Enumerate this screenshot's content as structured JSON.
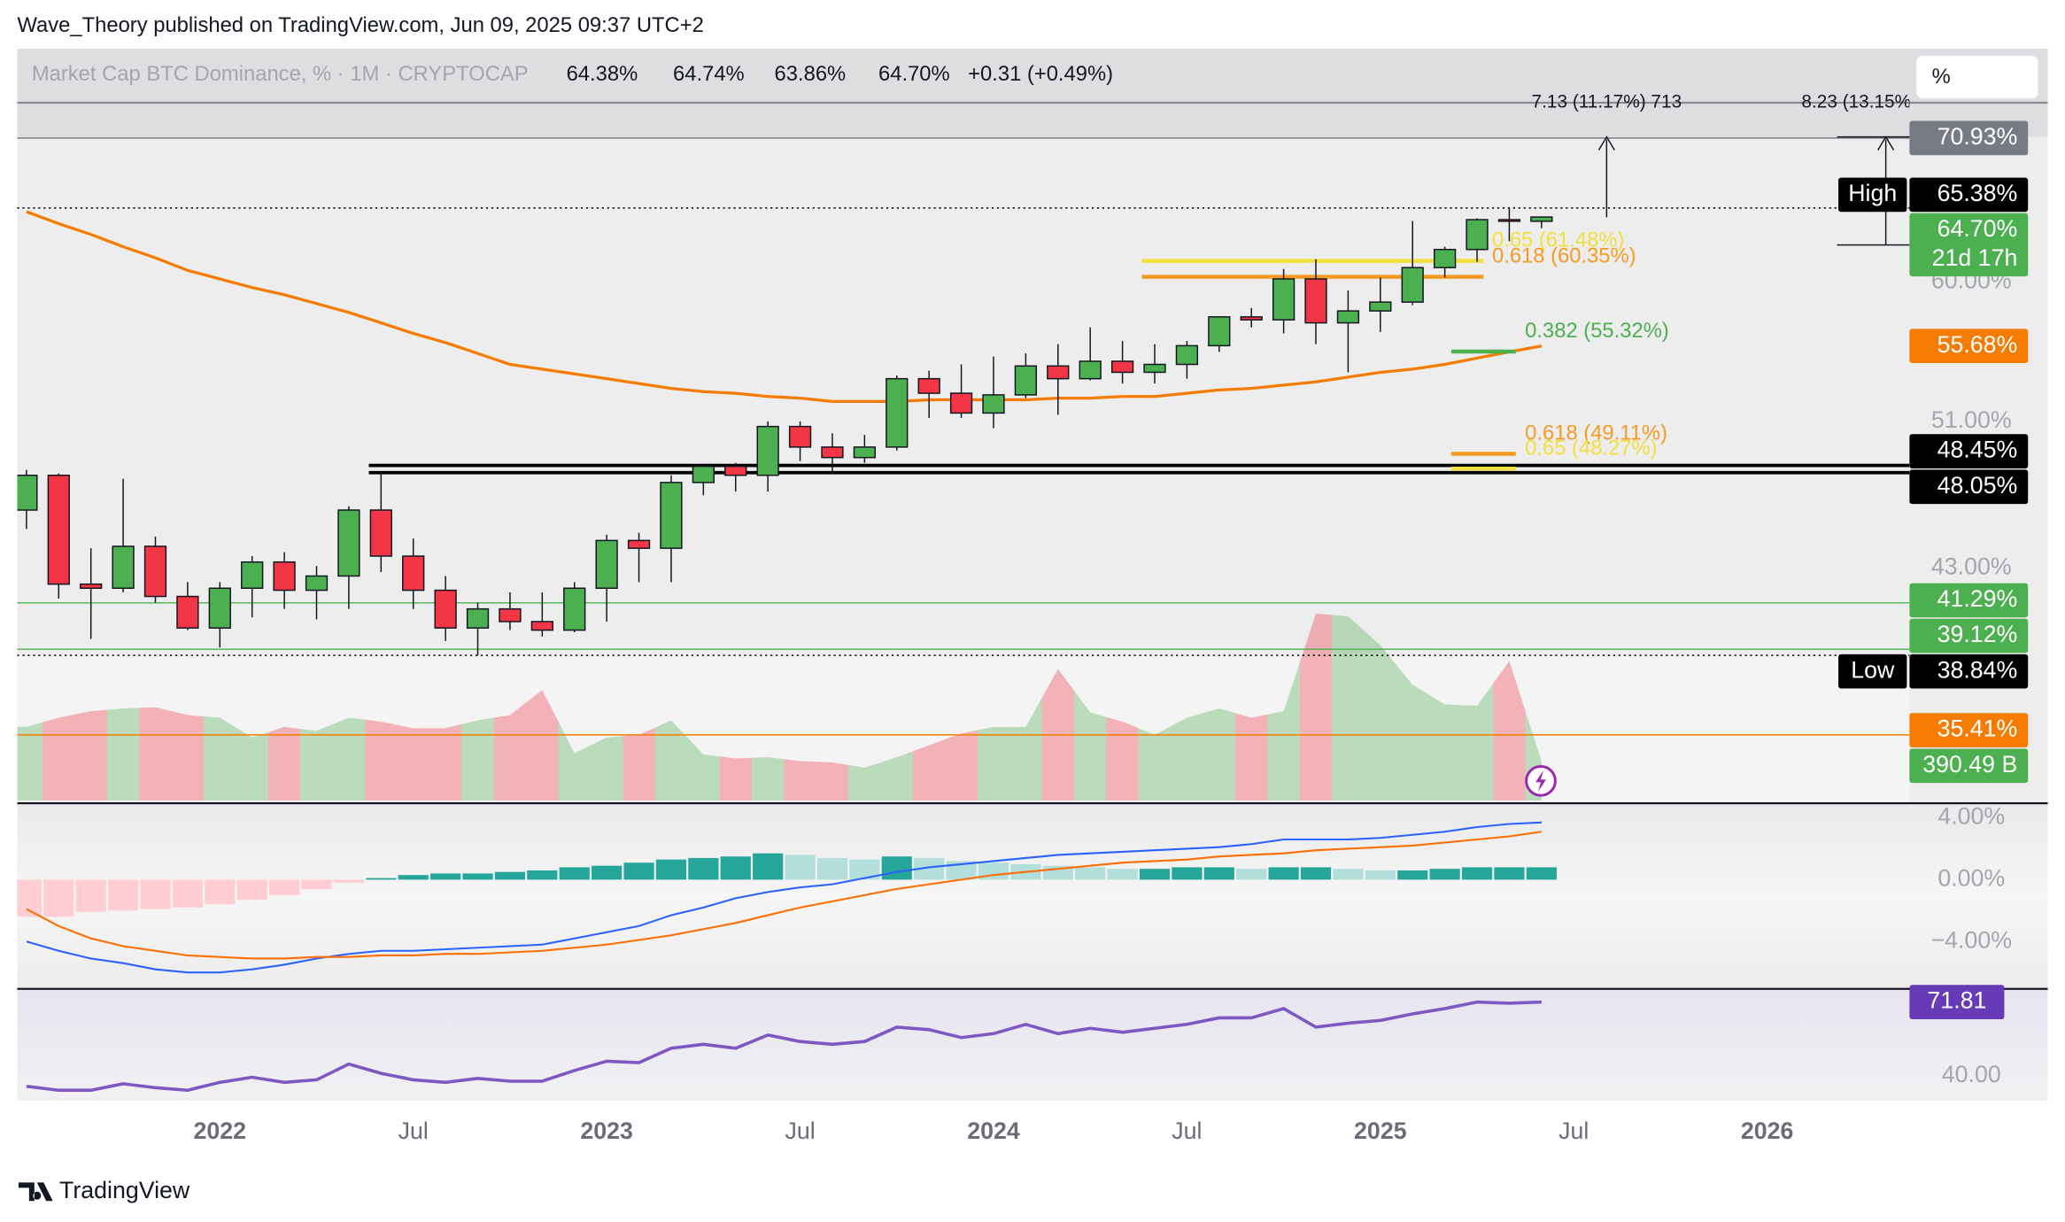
{
  "header": {
    "publisher": "Wave_Theory published on TradingView.com, Jun 09, 2025 09:37 UTC+2",
    "scale_button": "%"
  },
  "footer": {
    "brand": "TradingView"
  },
  "chart_data": [
    {
      "type": "candlestick",
      "title": "Market Cap BTC Dominance, % · 1M · CRYPTOCAP",
      "ohlc_labels": [
        "64.38%",
        "64.74%",
        "63.86%",
        "64.70%"
      ],
      "change_label": "+0.31 (+0.49%)",
      "categories": [
        null,
        null,
        null,
        null,
        null,
        null,
        "2022",
        null,
        null,
        null,
        null,
        null,
        "Jul",
        null,
        null,
        null,
        null,
        null,
        "2023",
        null,
        null,
        null,
        null,
        null,
        "Jul",
        null,
        null,
        null,
        null,
        null,
        "2024",
        null,
        null,
        null,
        null,
        null,
        "Jul",
        null,
        null,
        null,
        null,
        null,
        "2025",
        null,
        null,
        null,
        null,
        null,
        "Jul",
        null,
        null,
        null,
        null,
        null,
        "2026",
        null,
        null,
        null
      ],
      "open": [
        46.0,
        47.9,
        42.2,
        42.0,
        44.1,
        41.6,
        40.1,
        42.0,
        43.3,
        41.9,
        42.6,
        46.0,
        43.6,
        41.9,
        40.1,
        41.0,
        40.4,
        40.0,
        42.0,
        44.4,
        44.0,
        47.5,
        48.4,
        47.9,
        50.7,
        49.5,
        48.9,
        49.5,
        53.6,
        52.7,
        51.5,
        52.6,
        54.4,
        53.6,
        54.7,
        54.0,
        54.5,
        55.7,
        57.6,
        57.4,
        60.2,
        57.2,
        58.0,
        58.6,
        61.0,
        62.3,
        64.5,
        64.38,
        null,
        null,
        null,
        null,
        null,
        null,
        null,
        null,
        null,
        null
      ],
      "high": [
        48.2,
        48.0,
        44.0,
        47.7,
        44.6,
        42.3,
        42.3,
        43.6,
        43.8,
        43.1,
        46.2,
        48.1,
        44.5,
        42.6,
        41.3,
        41.8,
        41.8,
        42.3,
        44.7,
        44.8,
        47.9,
        48.5,
        48.6,
        51.0,
        51.0,
        50.3,
        50.2,
        53.8,
        54.1,
        54.5,
        55.0,
        55.2,
        55.8,
        56.9,
        56.0,
        55.8,
        56.0,
        57.6,
        58.2,
        60.9,
        61.6,
        59.4,
        60.3,
        64.4,
        62.5,
        64.6,
        65.38,
        64.74,
        null,
        null,
        null,
        null,
        null,
        null,
        null,
        null,
        null,
        null
      ],
      "low": [
        45.0,
        41.5,
        39.6,
        41.8,
        41.3,
        40.0,
        39.2,
        40.6,
        41.0,
        40.5,
        41.0,
        42.8,
        41.0,
        39.5,
        38.84,
        40.0,
        39.7,
        39.9,
        40.4,
        42.3,
        42.3,
        46.8,
        47.0,
        47.0,
        48.7,
        48.0,
        48.6,
        49.3,
        51.2,
        51.2,
        50.6,
        52.4,
        51.4,
        53.5,
        53.3,
        53.3,
        53.6,
        55.3,
        56.9,
        56.5,
        55.8,
        54.0,
        56.6,
        58.4,
        60.3,
        61.4,
        62.9,
        63.86,
        null,
        null,
        null,
        null,
        null,
        null,
        null,
        null,
        null,
        null
      ],
      "close": [
        47.9,
        42.2,
        42.0,
        44.1,
        41.6,
        40.1,
        42.0,
        43.3,
        41.9,
        42.6,
        46.0,
        43.6,
        41.9,
        40.1,
        41.0,
        40.4,
        40.0,
        42.0,
        44.4,
        44.0,
        47.5,
        48.4,
        47.9,
        50.7,
        49.5,
        48.9,
        49.5,
        53.6,
        52.7,
        51.5,
        52.6,
        54.4,
        53.6,
        54.7,
        54.0,
        54.5,
        55.7,
        57.6,
        57.4,
        60.2,
        57.2,
        58.0,
        58.6,
        61.0,
        62.3,
        64.5,
        64.38,
        64.7,
        null,
        null,
        null,
        null,
        null,
        null,
        null,
        null,
        null,
        null
      ],
      "up_color": "#4caf50",
      "down_color": "#f23645",
      "moving_average": {
        "color": "#f57c00",
        "last_label": "55.68%",
        "values": [
          65.1,
          64.2,
          63.4,
          62.5,
          61.7,
          60.8,
          60.2,
          59.6,
          59.1,
          58.5,
          57.9,
          57.2,
          56.5,
          55.9,
          55.2,
          54.5,
          54.2,
          53.9,
          53.6,
          53.3,
          53.0,
          52.8,
          52.7,
          52.5,
          52.4,
          52.2,
          52.2,
          52.2,
          52.3,
          52.3,
          52.3,
          52.3,
          52.4,
          52.4,
          52.5,
          52.5,
          52.7,
          52.9,
          53.0,
          53.2,
          53.4,
          53.7,
          54.0,
          54.2,
          54.5,
          54.9,
          55.3,
          55.68,
          null,
          null,
          null,
          null,
          null,
          null,
          null,
          null,
          null,
          null
        ]
      },
      "log_scale": true,
      "ylim": [
        32.8,
        78.7
      ],
      "yticks": [
        {
          "value": 43,
          "label": "43.00%"
        },
        {
          "value": 51,
          "label": "51.00%"
        },
        {
          "value": 60,
          "label": "60.00%"
        }
      ],
      "grid": false,
      "levels": [
        {
          "value": 70.93,
          "label": "70.93%",
          "color": "#787b86",
          "style": "solid"
        },
        {
          "value": 65.38,
          "label": "65.38%",
          "tag": "High",
          "color": "#000000",
          "style": "dotted"
        },
        {
          "value": 64.7,
          "label": "64.70%",
          "countdown": "21d 17h",
          "color": "#4caf50"
        },
        {
          "value": 48.45,
          "label": "48.45%",
          "color": "#000000",
          "style": "solid"
        },
        {
          "value": 48.05,
          "label": "48.05%",
          "color": "#000000",
          "style": "solid"
        },
        {
          "value": 41.29,
          "label": "41.29%",
          "color": "#4caf50",
          "style": "solid"
        },
        {
          "value": 39.12,
          "label": "39.12%",
          "color": "#4caf50",
          "style": "solid"
        },
        {
          "value": 38.84,
          "label": "38.84%",
          "tag": "Low",
          "color": "#000000",
          "style": "dotted"
        },
        {
          "value": 35.41,
          "label": "35.41%",
          "color": "#f57c00",
          "style": "solid"
        }
      ],
      "fib_levels": [
        {
          "value": 61.48,
          "label": "0.65 (61.48%)",
          "color": "#f2e03c"
        },
        {
          "value": 60.35,
          "label": "0.618 (60.35%)",
          "color": "#f59a23"
        },
        {
          "value": 55.32,
          "label": "0.382 (55.32%)",
          "color": "#4caf50"
        },
        {
          "value": 49.11,
          "label": "0.618 (49.11%)",
          "color": "#f59a23"
        },
        {
          "value": 48.27,
          "label": "0.65 (48.27%)",
          "color": "#f2e03c"
        }
      ],
      "annotations": [
        "7.13 (11.17%) 713",
        "8.23 (13.15%"
      ]
    },
    {
      "type": "area",
      "last_label": "390.49 B",
      "color": "#4caf50",
      "up_color": "rgba(76,175,80,0.35)",
      "down_color": "rgba(242,54,69,0.35)",
      "values": [
        729,
        820,
        885,
        911,
        924,
        846,
        820,
        625,
        729,
        690,
        820,
        781,
        716,
        716,
        794,
        846,
        1094,
        469,
        625,
        651,
        794,
        456,
        417,
        430,
        391,
        378,
        326,
        430,
        547,
        664,
        729,
        729,
        1302,
        872,
        781,
        651,
        820,
        911,
        820,
        885,
        1849,
        1823,
        1536,
        1146,
        951,
        937,
        1380,
        390.49
      ],
      "ylim": [
        0,
        1862
      ]
    },
    {
      "type": "macd",
      "histogram": [
        -2.4,
        -2.4,
        -2.1,
        -2.0,
        -1.9,
        -1.8,
        -1.6,
        -1.3,
        -1.0,
        -0.6,
        -0.2,
        0.1,
        0.3,
        0.4,
        0.4,
        0.5,
        0.6,
        0.8,
        0.9,
        1.1,
        1.3,
        1.4,
        1.5,
        1.7,
        1.6,
        1.4,
        1.3,
        1.5,
        1.4,
        1.2,
        1.1,
        1.0,
        0.9,
        0.8,
        0.7,
        0.7,
        0.8,
        0.8,
        0.7,
        0.8,
        0.8,
        0.7,
        0.6,
        0.6,
        0.7,
        0.8,
        0.8,
        0.8
      ],
      "hist_colors": [
        "#26a69a",
        "#b2dfdb",
        "#ff5252",
        "#ffcdd2"
      ],
      "series": [
        {
          "color": "#2962ff",
          "values": [
            -4.0,
            -4.6,
            -5.1,
            -5.4,
            -5.8,
            -6.0,
            -6.0,
            -5.8,
            -5.5,
            -5.1,
            -4.8,
            -4.6,
            -4.6,
            -4.5,
            -4.4,
            -4.3,
            -4.2,
            -3.8,
            -3.4,
            -3.0,
            -2.3,
            -1.8,
            -1.2,
            -0.8,
            -0.5,
            -0.3,
            0.1,
            0.5,
            0.8,
            1.0,
            1.2,
            1.4,
            1.6,
            1.7,
            1.8,
            1.9,
            2.0,
            2.1,
            2.3,
            2.6,
            2.6,
            2.6,
            2.7,
            2.9,
            3.1,
            3.4,
            3.6,
            3.7
          ]
        },
        {
          "color": "#ff6d00",
          "values": [
            -1.9,
            -3.0,
            -3.8,
            -4.3,
            -4.6,
            -4.9,
            -5.0,
            -5.1,
            -5.1,
            -5.0,
            -5.0,
            -4.9,
            -4.9,
            -4.8,
            -4.8,
            -4.7,
            -4.6,
            -4.4,
            -4.2,
            -3.9,
            -3.6,
            -3.2,
            -2.8,
            -2.3,
            -1.8,
            -1.4,
            -1.0,
            -0.6,
            -0.3,
            0.0,
            0.3,
            0.5,
            0.7,
            0.9,
            1.1,
            1.2,
            1.3,
            1.5,
            1.6,
            1.7,
            1.9,
            2.0,
            2.1,
            2.2,
            2.4,
            2.6,
            2.8,
            3.1
          ]
        }
      ],
      "ylim": [
        -6.98,
        4.77
      ],
      "yticks": [
        {
          "value": -4,
          "label": "−4.00%"
        },
        {
          "value": 0,
          "label": "0.00%"
        },
        {
          "value": 4,
          "label": "4.00%"
        }
      ]
    },
    {
      "type": "line",
      "color": "#7e57c2",
      "last_label": "71.81",
      "values": [
        35.5,
        33.8,
        33.8,
        36.6,
        34.9,
        33.8,
        37.2,
        39.4,
        37.2,
        38.3,
        45.1,
        41.1,
        38.3,
        37.2,
        38.9,
        37.7,
        37.7,
        42.3,
        46.3,
        45.7,
        51.9,
        53.6,
        51.9,
        57.6,
        54.8,
        53.6,
        54.8,
        61.0,
        59.9,
        56.5,
        58.2,
        62.2,
        58.2,
        60.5,
        58.8,
        60.5,
        62.2,
        65.0,
        65.0,
        69.0,
        61.0,
        62.7,
        63.9,
        66.7,
        69.0,
        71.8,
        71.3,
        71.81
      ],
      "ylim": [
        29.8,
        76.9
      ],
      "yticks": [
        {
          "value": 40,
          "label": "40.00"
        }
      ]
    }
  ]
}
